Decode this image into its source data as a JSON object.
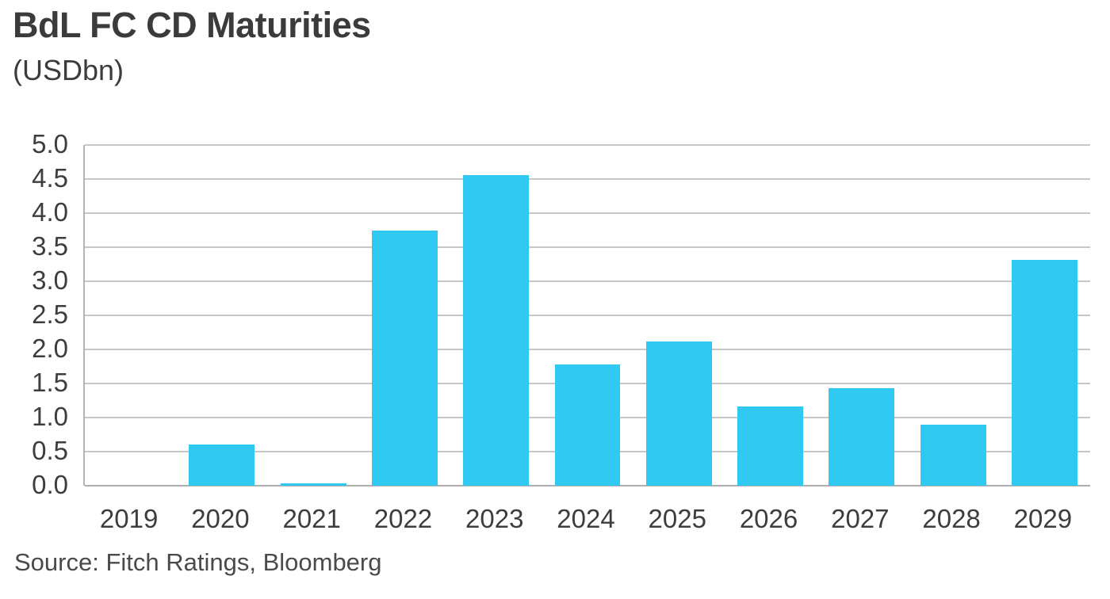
{
  "header": {
    "title": "BdL FC CD Maturities",
    "subtitle": "(USDbn)"
  },
  "footer": {
    "source": "Source: Fitch Ratings, Bloomberg"
  },
  "colors": {
    "bar": "#31c8f2",
    "gridline": "#c7c7c7",
    "axis_line": "#b4b4b4",
    "title_text": "#3b3b3b",
    "tick_text": "#3d3d3d",
    "source_text": "#4a4a4a",
    "background": "#ffffff"
  },
  "chart_data": {
    "type": "bar",
    "title": "BdL FC CD Maturities",
    "subtitle": "(USDbn)",
    "categories": [
      "2019",
      "2020",
      "2021",
      "2022",
      "2023",
      "2024",
      "2025",
      "2026",
      "2027",
      "2028",
      "2029"
    ],
    "values": [
      0,
      0.6,
      0.04,
      3.75,
      4.56,
      1.78,
      2.12,
      1.16,
      1.43,
      0.89,
      3.31
    ],
    "xlabel": "",
    "ylabel": "",
    "ylim": [
      0,
      5.0
    ],
    "ytick_step": 0.5,
    "yticks": [
      "5.0",
      "4.5",
      "4.0",
      "3.5",
      "3.0",
      "2.5",
      "2.0",
      "1.5",
      "1.0",
      "0.5",
      "0.0"
    ],
    "grid": "horizontal gridlines on, every 0.5",
    "legend": "none",
    "bar_color": "#31c8f2",
    "source": "Source: Fitch Ratings, Bloomberg"
  }
}
